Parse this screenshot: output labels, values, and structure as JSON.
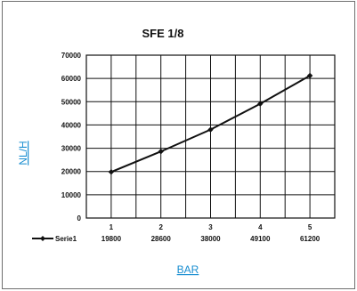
{
  "chart_data": {
    "type": "line",
    "title": "SFE 1/8",
    "xlabel": "BAR",
    "ylabel": "NL/H",
    "categories": [
      "1",
      "2",
      "3",
      "4",
      "5"
    ],
    "series": [
      {
        "name": "Serie1",
        "values": [
          19800,
          28600,
          38000,
          49100,
          61200
        ]
      }
    ],
    "y_ticks": [
      "0",
      "10000",
      "20000",
      "30000",
      "40000",
      "50000",
      "60000",
      "70000"
    ],
    "ylim": [
      0,
      70000
    ],
    "grid": true,
    "legend": "data table below plot",
    "colors": {
      "line": "#111111",
      "axis_link": "#1a8ed1"
    }
  }
}
